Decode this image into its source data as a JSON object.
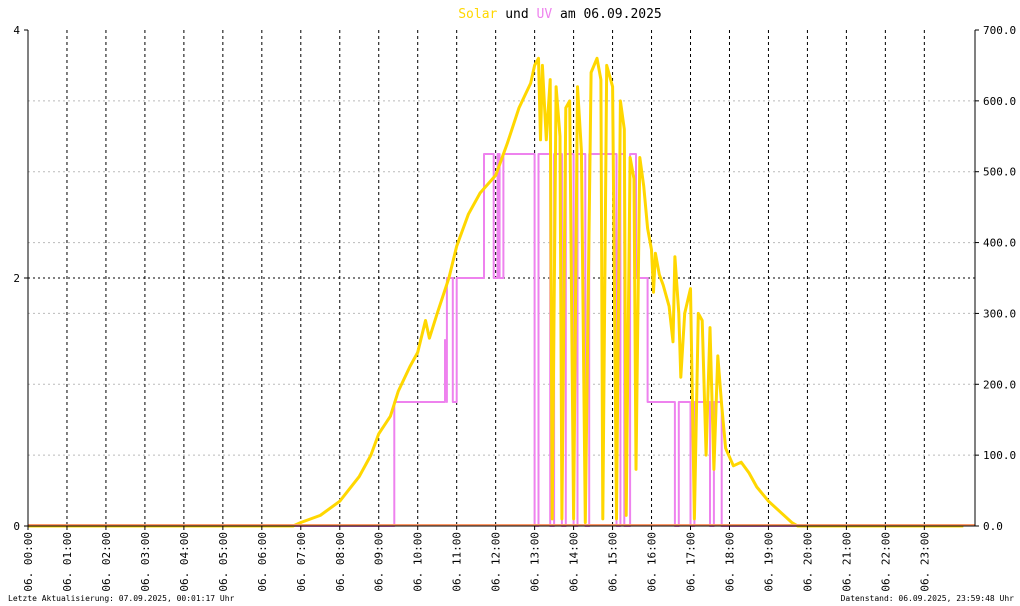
{
  "chart_data": {
    "type": "line",
    "title_parts": [
      {
        "text": "Solar",
        "color": "#ffd700"
      },
      {
        "text": " und ",
        "color": "#000000"
      },
      {
        "text": "UV",
        "color": "#ee82ee"
      },
      {
        "text": " am 06.09.2025",
        "color": "#000000"
      }
    ],
    "footer_left": "Letzte Aktualisierung: 07.09.2025, 00:01:17 Uhr",
    "footer_right": "Datenstand: 06.09.2025, 23:59:48 Uhr",
    "x_tick_labels": [
      "06. 00:00",
      "06. 01:00",
      "06. 02:00",
      "06. 03:00",
      "06. 04:00",
      "06. 05:00",
      "06. 06:00",
      "06. 07:00",
      "06. 08:00",
      "06. 09:00",
      "06. 10:00",
      "06. 11:00",
      "06. 12:00",
      "06. 13:00",
      "06. 14:00",
      "06. 15:00",
      "06. 16:00",
      "06. 17:00",
      "06. 18:00",
      "06. 19:00",
      "06. 20:00",
      "06. 21:00",
      "06. 22:00",
      "06. 23:00"
    ],
    "xlim": [
      0,
      24.3
    ],
    "y_left": {
      "lim": [
        0,
        4
      ],
      "ticks": [
        "0",
        "2",
        "4"
      ]
    },
    "y_right": {
      "lim": [
        0,
        700
      ],
      "ticks": [
        "0.0",
        "100.0",
        "200.0",
        "300.0",
        "400.0",
        "500.0",
        "600.0",
        "700.0"
      ]
    },
    "grid": true,
    "series": [
      {
        "name": "Solar",
        "axis": "right",
        "color": "#ffd700",
        "points": [
          [
            0,
            0
          ],
          [
            6.8,
            0
          ],
          [
            7.0,
            5
          ],
          [
            7.5,
            15
          ],
          [
            8.0,
            35
          ],
          [
            8.5,
            70
          ],
          [
            8.8,
            100
          ],
          [
            9.0,
            130
          ],
          [
            9.3,
            155
          ],
          [
            9.5,
            190
          ],
          [
            9.8,
            225
          ],
          [
            10.0,
            245
          ],
          [
            10.2,
            290
          ],
          [
            10.3,
            265
          ],
          [
            10.5,
            300
          ],
          [
            10.8,
            350
          ],
          [
            11.0,
            395
          ],
          [
            11.3,
            440
          ],
          [
            11.6,
            470
          ],
          [
            12.0,
            495
          ],
          [
            12.3,
            540
          ],
          [
            12.6,
            590
          ],
          [
            12.9,
            625
          ],
          [
            13.0,
            650
          ],
          [
            13.1,
            660
          ],
          [
            13.15,
            545
          ],
          [
            13.2,
            650
          ],
          [
            13.3,
            545
          ],
          [
            13.4,
            630
          ],
          [
            13.45,
            10
          ],
          [
            13.55,
            620
          ],
          [
            13.65,
            550
          ],
          [
            13.7,
            10
          ],
          [
            13.8,
            590
          ],
          [
            13.9,
            600
          ],
          [
            14.0,
            10
          ],
          [
            14.1,
            620
          ],
          [
            14.2,
            530
          ],
          [
            14.3,
            5
          ],
          [
            14.45,
            640
          ],
          [
            14.6,
            660
          ],
          [
            14.7,
            630
          ],
          [
            14.75,
            10
          ],
          [
            14.85,
            650
          ],
          [
            15.0,
            620
          ],
          [
            15.1,
            10
          ],
          [
            15.2,
            600
          ],
          [
            15.3,
            560
          ],
          [
            15.35,
            15
          ],
          [
            15.45,
            520
          ],
          [
            15.55,
            490
          ],
          [
            15.6,
            80
          ],
          [
            15.7,
            520
          ],
          [
            15.8,
            480
          ],
          [
            15.9,
            420
          ],
          [
            16.0,
            390
          ],
          [
            16.05,
            330
          ],
          [
            16.1,
            385
          ],
          [
            16.2,
            355
          ],
          [
            16.3,
            340
          ],
          [
            16.45,
            310
          ],
          [
            16.55,
            260
          ],
          [
            16.6,
            380
          ],
          [
            16.7,
            300
          ],
          [
            16.75,
            210
          ],
          [
            16.85,
            300
          ],
          [
            17.0,
            335
          ],
          [
            17.1,
            10
          ],
          [
            17.2,
            300
          ],
          [
            17.3,
            290
          ],
          [
            17.4,
            100
          ],
          [
            17.5,
            280
          ],
          [
            17.6,
            80
          ],
          [
            17.7,
            240
          ],
          [
            17.8,
            170
          ],
          [
            17.9,
            110
          ],
          [
            18.1,
            85
          ],
          [
            18.3,
            90
          ],
          [
            18.5,
            75
          ],
          [
            18.7,
            55
          ],
          [
            19.0,
            35
          ],
          [
            19.3,
            20
          ],
          [
            19.6,
            5
          ],
          [
            19.75,
            0
          ],
          [
            24,
            0
          ]
        ]
      },
      {
        "name": "UV",
        "axis": "left",
        "color": "#ee82ee",
        "points": [
          [
            0,
            0
          ],
          [
            9.4,
            0
          ],
          [
            9.4,
            1
          ],
          [
            10.7,
            1
          ],
          [
            10.7,
            1.5
          ],
          [
            10.75,
            1
          ],
          [
            10.75,
            2
          ],
          [
            10.9,
            2
          ],
          [
            10.9,
            1
          ],
          [
            11.0,
            1
          ],
          [
            11.0,
            2
          ],
          [
            11.7,
            2
          ],
          [
            11.7,
            3
          ],
          [
            11.95,
            3
          ],
          [
            11.95,
            2
          ],
          [
            12.05,
            2
          ],
          [
            12.05,
            3
          ],
          [
            12.1,
            3
          ],
          [
            12.1,
            2
          ],
          [
            12.2,
            2
          ],
          [
            12.2,
            3
          ],
          [
            13.0,
            3
          ],
          [
            13.0,
            0
          ],
          [
            13.1,
            0
          ],
          [
            13.1,
            3
          ],
          [
            13.4,
            3
          ],
          [
            13.4,
            0
          ],
          [
            13.5,
            0
          ],
          [
            13.5,
            3
          ],
          [
            13.7,
            3
          ],
          [
            13.7,
            0
          ],
          [
            13.8,
            0
          ],
          [
            13.8,
            3
          ],
          [
            14.0,
            3
          ],
          [
            14.0,
            0
          ],
          [
            14.1,
            0
          ],
          [
            14.1,
            3
          ],
          [
            14.3,
            3
          ],
          [
            14.3,
            0
          ],
          [
            14.4,
            0
          ],
          [
            14.4,
            3
          ],
          [
            15.1,
            3
          ],
          [
            15.1,
            0
          ],
          [
            15.2,
            0
          ],
          [
            15.2,
            3
          ],
          [
            15.3,
            3
          ],
          [
            15.3,
            0
          ],
          [
            15.45,
            0
          ],
          [
            15.45,
            3
          ],
          [
            15.6,
            3
          ],
          [
            15.6,
            2
          ],
          [
            15.9,
            2
          ],
          [
            15.9,
            1
          ],
          [
            16.6,
            1
          ],
          [
            16.6,
            0
          ],
          [
            16.7,
            0
          ],
          [
            16.7,
            1
          ],
          [
            17.0,
            1
          ],
          [
            17.0,
            0
          ],
          [
            17.1,
            0
          ],
          [
            17.1,
            1
          ],
          [
            17.5,
            1
          ],
          [
            17.5,
            0
          ],
          [
            17.6,
            0
          ],
          [
            17.6,
            1
          ],
          [
            17.8,
            1
          ],
          [
            17.8,
            0
          ],
          [
            24,
            0
          ]
        ]
      }
    ]
  }
}
